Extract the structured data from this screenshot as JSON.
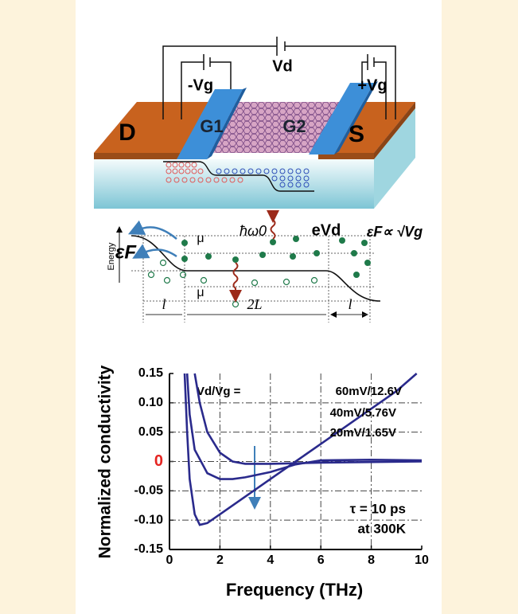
{
  "device": {
    "drain": "D",
    "source": "S",
    "gate1": "G1",
    "gate2": "G2",
    "drain_voltage": "Vd",
    "gate_minus": "-Vg",
    "gate_plus": "+Vg"
  },
  "band_diagram": {
    "energy": "Energy",
    "fermi_left": "εF",
    "mu_top": "μ",
    "mu_bottom": "μ",
    "photon": "ħω0",
    "bias": "eVd",
    "fermi_right": "εF∝ √Vg",
    "contact_left": "l",
    "channel": "2L",
    "contact_right": "l"
  },
  "chart_data": {
    "type": "line",
    "x_label": "Frequency (THz)",
    "y_label": "Normalized conductivity",
    "legend_prefix": "Vd/Vg =",
    "annotations": [
      "τ = 10 ps",
      "at 300K"
    ],
    "xlim": [
      0,
      10
    ],
    "xticks": [
      0,
      2,
      4,
      6,
      8,
      10
    ],
    "ylim": [
      -0.15,
      0.15
    ],
    "yticks": [
      -0.15,
      {
        "value": -0.1,
        "label": "-0.10"
      },
      -0.05,
      0,
      0.05,
      {
        "value": 0.1,
        "label": "0.10"
      },
      0.15
    ],
    "zero_label_color": "#e52421",
    "grid": true,
    "series": [
      {
        "name": "60mV/12.6V",
        "color": "#2a2a8c",
        "x": [
          0.6,
          0.7,
          0.8,
          1.0,
          1.2,
          1.5,
          2,
          3,
          4,
          5,
          6,
          7,
          8,
          9,
          9.8
        ],
        "values": [
          0.15,
          0.05,
          -0.03,
          -0.09,
          -0.108,
          -0.105,
          -0.09,
          -0.06,
          -0.03,
          0.0,
          0.03,
          0.06,
          0.09,
          0.12,
          0.15
        ]
      },
      {
        "name": "40mV/5.76V",
        "color": "#2a2a8c",
        "x": [
          0.7,
          0.8,
          1.0,
          1.5,
          2,
          2.5,
          3,
          4,
          5,
          6,
          8,
          10
        ],
        "values": [
          0.15,
          0.08,
          0.02,
          -0.02,
          -0.03,
          -0.03,
          -0.027,
          -0.018,
          -0.005,
          0.002,
          0.003,
          0.002
        ]
      },
      {
        "name": "20mV/1.65V",
        "color": "#2a2a8c",
        "x": [
          1.0,
          1.2,
          1.5,
          2,
          2.5,
          3,
          4,
          6,
          8,
          10
        ],
        "values": [
          0.15,
          0.1,
          0.05,
          0.015,
          0.0,
          -0.004,
          -0.004,
          -0.002,
          -0.001,
          0.0
        ]
      }
    ]
  }
}
